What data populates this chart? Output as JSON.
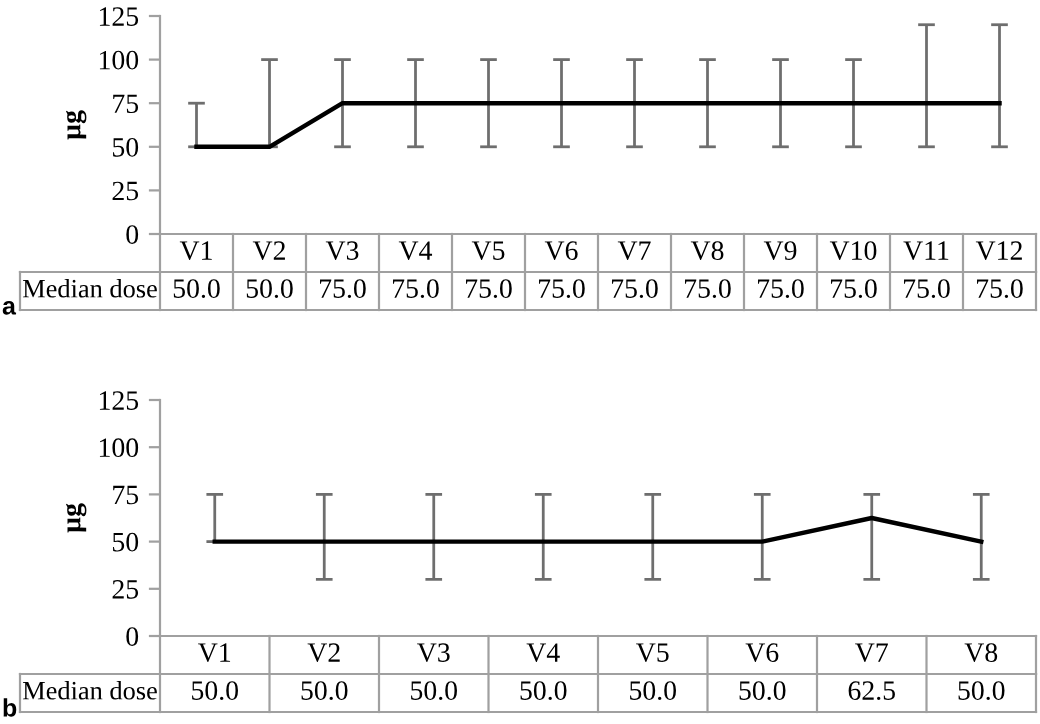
{
  "chart_data": [
    {
      "type": "line",
      "ylabel": "µg",
      "categories": [
        "V1",
        "V2",
        "V3",
        "V4",
        "V5",
        "V6",
        "V7",
        "V8",
        "V9",
        "V10",
        "V11",
        "V12"
      ],
      "series": [
        {
          "color": "#000000",
          "values": [
            50,
            50,
            75,
            75,
            75,
            75,
            75,
            75,
            75,
            75,
            75,
            75
          ],
          "errors": [
            [
              50,
              75
            ],
            [
              50,
              100
            ],
            [
              50,
              100
            ],
            [
              50,
              100
            ],
            [
              50,
              100
            ],
            [
              50,
              100
            ],
            [
              50,
              100
            ],
            [
              50,
              100
            ],
            [
              50,
              100
            ],
            [
              50,
              100
            ],
            [
              50,
              120
            ],
            [
              50,
              120
            ]
          ],
          "value_labels": [
            "50.0",
            "50.0",
            "75.0",
            "75.0",
            "75.0",
            "75.0",
            "75.0",
            "75.0",
            "75.0",
            "75.0",
            "75.0",
            "75.0"
          ]
        }
      ],
      "ylim": [
        0,
        125
      ],
      "yticks": [
        0,
        25,
        50,
        75,
        100,
        125
      ],
      "marker": "none",
      "line_style": "solid",
      "grid": false,
      "legend": false,
      "annotations": [
        "Median dose",
        "a"
      ]
    },
    {
      "type": "line",
      "ylabel": "µg",
      "categories": [
        "V1",
        "V2",
        "V3",
        "V4",
        "V5",
        "V6",
        "V7",
        "V8"
      ],
      "series": [
        {
          "color": "#000000",
          "values": [
            50,
            50,
            50,
            50,
            50,
            50,
            62.5,
            50
          ],
          "errors": [
            [
              50,
              75
            ],
            [
              30,
              75
            ],
            [
              30,
              75
            ],
            [
              30,
              75
            ],
            [
              30,
              75
            ],
            [
              30,
              75
            ],
            [
              30,
              75
            ],
            [
              30,
              75
            ]
          ],
          "value_labels": [
            "50.0",
            "50.0",
            "50.0",
            "50.0",
            "50.0",
            "50.0",
            "62.5",
            "50.0"
          ]
        }
      ],
      "ylim": [
        0,
        125
      ],
      "yticks": [
        0,
        25,
        50,
        75,
        100,
        125
      ],
      "marker": "none",
      "line_style": "solid",
      "grid": false,
      "legend": false,
      "annotations": [
        "Median dose",
        "b"
      ]
    }
  ]
}
